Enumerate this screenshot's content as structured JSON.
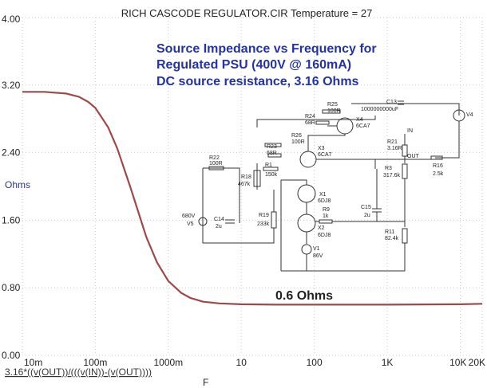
{
  "window_title": "RICH CASCODE REGULATOR.CIR Temperature = 27",
  "annotations": {
    "line1": "Source Impedance vs Frequency for",
    "line2": "Regulated PSU (400V @ 160mA)",
    "line3": "DC source resistance, 3.16 Ohms",
    "plateau": "0.6 Ohms"
  },
  "axes": {
    "ylabel": "Ohms",
    "xlabel": "F",
    "expression": "3.16*((v(OUT))/(((v(IN))-(v(OUT))))",
    "y_ticks": [
      "4.00",
      "3.20",
      "2.40",
      "1.60",
      "0.80",
      "0.00"
    ],
    "x_ticks": [
      "10m",
      "100m",
      "1000m",
      "10",
      "100",
      "1K",
      "10K",
      "20K"
    ]
  },
  "schematic_labels": {
    "r25": "R25",
    "r25v": "100R",
    "c13": "C13",
    "c13v": "1000000000uF",
    "r24": "R24",
    "r24v": "68R",
    "x4": "X4",
    "x4t": "6CA7",
    "v4": "V4",
    "r26": "R26",
    "r26v": "100R",
    "r23": "R23",
    "r23v": "68R",
    "x3": "X3",
    "x3t": "6CA7",
    "r22": "R22",
    "r22v": "100R",
    "r1": "R1",
    "r1v": "150k",
    "r18": "R18",
    "r18v": "467k",
    "r21": "R21",
    "r21v": "3.16R",
    "out": "OUT",
    "r16": "R16",
    "r16v": "2.5k",
    "r3": "R3",
    "r3v": "317.6k",
    "x1": "X1",
    "x1t": "6DJ8",
    "v5": "V5",
    "v5v": "680V",
    "c14": "C14",
    "c14v": "2u",
    "r19": "R19",
    "r19v": "233k",
    "r9": "R9",
    "r9v": "1k",
    "x2": "X2",
    "x2t": "6DJ8",
    "c15": "C15",
    "c15v": "2u",
    "r11": "R11",
    "r11v": "82.4k",
    "v1": "V1",
    "v1v": "86V",
    "in": "IN"
  },
  "chart_data": {
    "type": "line",
    "title": "RICH CASCODE REGULATOR.CIR Temperature = 27",
    "xlabel": "F",
    "ylabel": "Ohms",
    "x_scale": "log",
    "xlim": [
      0.01,
      20000
    ],
    "ylim": [
      0,
      4
    ],
    "grid": true,
    "series": [
      {
        "color": "#a04848",
        "x": [
          0.01,
          0.02,
          0.04,
          0.06,
          0.08,
          0.1,
          0.15,
          0.2,
          0.3,
          0.4,
          0.5,
          0.7,
          1,
          1.5,
          2,
          3,
          5,
          10,
          30,
          100,
          1000,
          10000,
          20000
        ],
        "y": [
          3.12,
          3.12,
          3.1,
          3.06,
          3.0,
          2.93,
          2.7,
          2.45,
          2.0,
          1.66,
          1.4,
          1.1,
          0.88,
          0.74,
          0.68,
          0.635,
          0.615,
          0.605,
          0.6,
          0.6,
          0.6,
          0.605,
          0.61
        ]
      }
    ]
  }
}
